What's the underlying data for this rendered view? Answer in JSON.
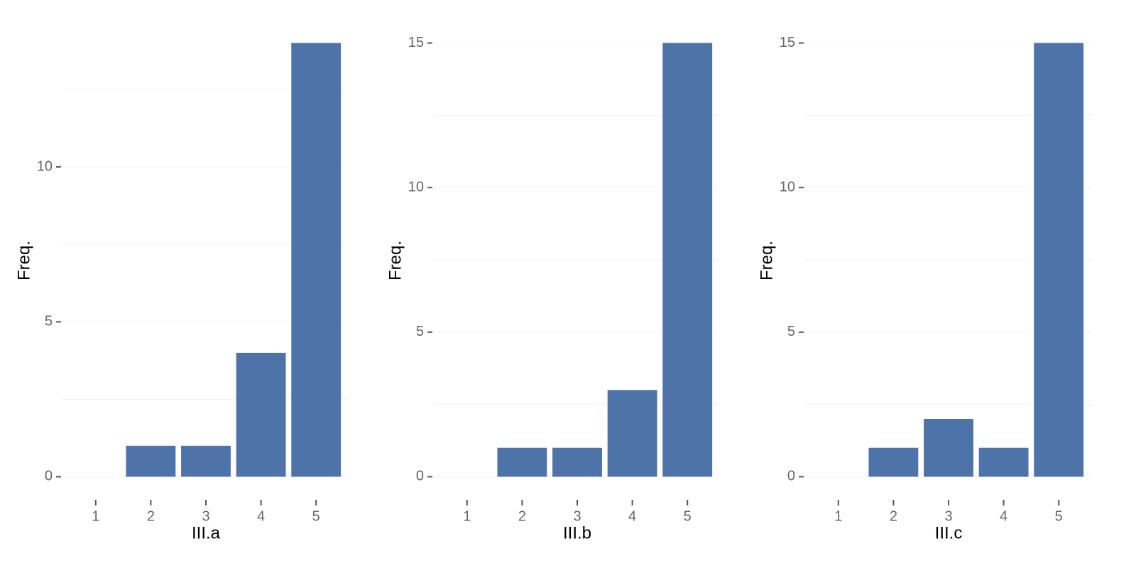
{
  "chart_data": [
    {
      "type": "bar",
      "x_label": "III.a",
      "y_label": "Freq.",
      "categories": [
        "1",
        "2",
        "3",
        "4",
        "5"
      ],
      "values": [
        0,
        1,
        1,
        4,
        14
      ],
      "color": "#4e73a8",
      "ylim": [
        -0.7,
        14.7
      ],
      "yticks": [
        0,
        5,
        10
      ],
      "minor_yticks": [
        2.5,
        7.5,
        12.5
      ],
      "grid": true
    },
    {
      "type": "bar",
      "x_label": "III.b",
      "y_label": "Freq.",
      "categories": [
        "1",
        "2",
        "3",
        "4",
        "5"
      ],
      "values": [
        0,
        1,
        1,
        3,
        15
      ],
      "color": "#4e73a8",
      "ylim": [
        -0.75,
        15.75
      ],
      "yticks": [
        0,
        5,
        10,
        15
      ],
      "minor_yticks": [
        2.5,
        7.5,
        12.5
      ],
      "grid": true
    },
    {
      "type": "bar",
      "x_label": "III.c",
      "y_label": "Freq.",
      "categories": [
        "1",
        "2",
        "3",
        "4",
        "5"
      ],
      "values": [
        0,
        1,
        2,
        1,
        15
      ],
      "color": "#4e73a8",
      "ylim": [
        -0.75,
        15.75
      ],
      "yticks": [
        0,
        5,
        10,
        15
      ],
      "minor_yticks": [
        2.5,
        7.5,
        12.5
      ],
      "grid": true
    }
  ]
}
